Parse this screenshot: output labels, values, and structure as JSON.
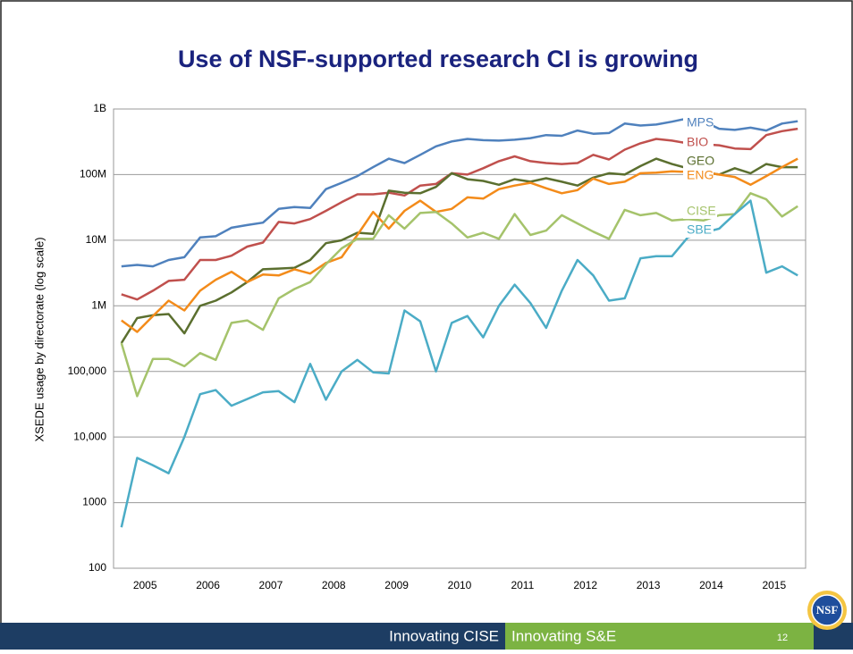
{
  "slide": {
    "title": "Use of NSF-supported research CI is growing",
    "footer_left": "Innovating CISE",
    "footer_right": "Innovating S&E",
    "page_number": "12",
    "logo": "NSF"
  },
  "chart_data": {
    "type": "line",
    "y_label": "XSEDE usage by directorate (log scale)",
    "categories": [
      null,
      "2005",
      null,
      null,
      null,
      "2006",
      null,
      null,
      null,
      "2007",
      null,
      null,
      null,
      "2008",
      null,
      null,
      null,
      "2009",
      null,
      null,
      null,
      "2010",
      null,
      null,
      null,
      "2011",
      null,
      null,
      null,
      "2012",
      null,
      null,
      null,
      "2013",
      null,
      null,
      null,
      "2014",
      null,
      null,
      null,
      "2015",
      null,
      null
    ],
    "log_scale": true,
    "grid": true,
    "ylim": [
      100,
      1000000000
    ],
    "yticks": [
      100,
      1000,
      {
        "value": 10000,
        "label": "10,000"
      },
      {
        "value": 100000,
        "label": "100,000"
      },
      {
        "value": 1000000,
        "label": "1M"
      },
      {
        "value": 10000000,
        "label": "10M"
      },
      {
        "value": 100000000,
        "label": "100M"
      },
      {
        "value": 1000000000,
        "label": "1B"
      }
    ],
    "series": [
      {
        "name": "MPS",
        "color": "#4f81bd",
        "values": [
          4000000,
          4200000,
          4000000,
          5000000,
          5500000,
          11000000,
          11500000,
          15500000,
          17000000,
          18500000,
          30000000,
          32000000,
          31000000,
          60000000,
          75000000,
          95000000,
          130000000,
          175000000,
          150000000,
          200000000,
          270000000,
          320000000,
          350000000,
          335000000,
          330000000,
          340000000,
          360000000,
          400000000,
          390000000,
          470000000,
          420000000,
          430000000,
          600000000,
          560000000,
          580000000,
          640000000,
          720000000,
          650000000,
          500000000,
          480000000,
          520000000,
          470000000,
          600000000,
          650000000
        ]
      },
      {
        "name": "BIO",
        "color": "#c0504d",
        "values": [
          1500000,
          1250000,
          1700000,
          2400000,
          2500000,
          5000000,
          5000000,
          5800000,
          8000000,
          9200000,
          19000000,
          18000000,
          21000000,
          28000000,
          38000000,
          50000000,
          50000000,
          53000000,
          48000000,
          68000000,
          72000000,
          105000000,
          100000000,
          125000000,
          160000000,
          190000000,
          160000000,
          150000000,
          145000000,
          150000000,
          200000000,
          170000000,
          240000000,
          300000000,
          350000000,
          330000000,
          300000000,
          290000000,
          280000000,
          250000000,
          245000000,
          400000000,
          460000000,
          500000000
        ]
      },
      {
        "name": "GEO",
        "color": "#5b6f2f",
        "values": [
          270000,
          650000,
          720000,
          750000,
          380000,
          1000000,
          1200000,
          1600000,
          2300000,
          3600000,
          3700000,
          3800000,
          5000000,
          9000000,
          10000000,
          13000000,
          12500000,
          57000000,
          53000000,
          52000000,
          65000000,
          105000000,
          85000000,
          80000000,
          70000000,
          85000000,
          78000000,
          88000000,
          78000000,
          68000000,
          90000000,
          105000000,
          100000000,
          135000000,
          175000000,
          145000000,
          125000000,
          110000000,
          100000000,
          125000000,
          105000000,
          145000000,
          130000000,
          130000000
        ]
      },
      {
        "name": "ENG",
        "color": "#f38b1a",
        "values": [
          600000,
          400000,
          700000,
          1200000,
          850000,
          1700000,
          2500000,
          3300000,
          2300000,
          3000000,
          2900000,
          3600000,
          3100000,
          4500000,
          5500000,
          12000000,
          27000000,
          15000000,
          28000000,
          40000000,
          27000000,
          30000000,
          45000000,
          43000000,
          60000000,
          68000000,
          75000000,
          62000000,
          52000000,
          58000000,
          87000000,
          72000000,
          78000000,
          105000000,
          107000000,
          112000000,
          110000000,
          110000000,
          100000000,
          92000000,
          70000000,
          95000000,
          130000000,
          175000000
        ]
      },
      {
        "name": "CISE",
        "color": "#a5c36b",
        "values": [
          270000,
          42000,
          155000,
          155000,
          120000,
          190000,
          150000,
          550000,
          600000,
          430000,
          1300000,
          1800000,
          2300000,
          4300000,
          7500000,
          10500000,
          10500000,
          24000000,
          15000000,
          26000000,
          27000000,
          18000000,
          11000000,
          13000000,
          10500000,
          25000000,
          12000000,
          14000000,
          24000000,
          18000000,
          13500000,
          10500000,
          29000000,
          24000000,
          26000000,
          20000000,
          21000000,
          20000000,
          24000000,
          25000000,
          52000000,
          42000000,
          23000000,
          33000000
        ]
      },
      {
        "name": "SBE",
        "color": "#4bacc6",
        "values": [
          420,
          4800,
          3700,
          2800,
          10000,
          45000,
          52000,
          30000,
          38000,
          48000,
          50000,
          34000,
          130000,
          37000,
          100000,
          150000,
          97000,
          93000,
          850000,
          580000,
          100000,
          550000,
          700000,
          330000,
          1000000,
          2100000,
          1100000,
          460000,
          1700000,
          5000000,
          2900000,
          1200000,
          1300000,
          5300000,
          5700000,
          5700000,
          11000000,
          13000000,
          15000000,
          25000000,
          40000000,
          3200000,
          4000000,
          2900000
        ]
      }
    ]
  }
}
